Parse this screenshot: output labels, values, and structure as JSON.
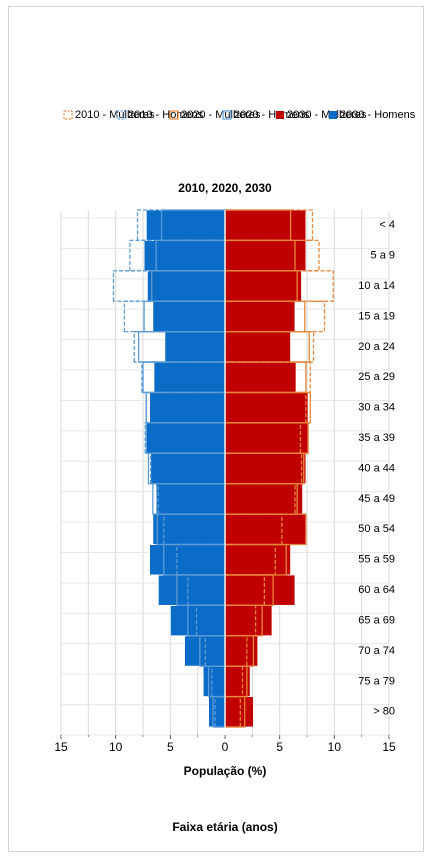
{
  "chart_data": {
    "type": "bar",
    "orientation": "population-pyramid",
    "title": "2010, 2020, 2030",
    "xlabel": "População (%)",
    "ylabel": "Faixa etária (anos)",
    "xlim": [
      -15,
      15
    ],
    "xticks": [
      15,
      10,
      5,
      0,
      5,
      10,
      15
    ],
    "grid": true,
    "legend_position": "top",
    "categories": [
      "> 80",
      "75 a 79",
      "70 a 74",
      "65 a 69",
      "60 a 64",
      "55 a 59",
      "50 a 54",
      "45 a 49",
      "40 a 44",
      "35 a 39",
      "30 a 34",
      "25 a 29",
      "20 a 24",
      "15 a 19",
      "10 a 14",
      "5 a 9",
      "< 4"
    ],
    "series": [
      {
        "name": "2010 - Mulheres",
        "side": "left",
        "style": "dashed-outline",
        "color": "#e8873a",
        "values": [
          1.4,
          1.6,
          2.0,
          2.8,
          3.6,
          4.6,
          5.2,
          6.4,
          7.0,
          6.9,
          7.4,
          7.8,
          8.1,
          9.1,
          9.9,
          8.6,
          8.0
        ]
      },
      {
        "name": "2010 - Homens",
        "side": "right",
        "style": "dashed-outline",
        "color": "#5b9bd5",
        "values": [
          0.9,
          1.2,
          1.8,
          2.6,
          3.4,
          4.4,
          5.6,
          6.1,
          6.8,
          7.3,
          7.2,
          7.6,
          8.3,
          9.2,
          10.2,
          8.7,
          8.0
        ]
      },
      {
        "name": "2020 - Mulheres",
        "side": "left",
        "style": "solid-outline",
        "color": "#e8873a",
        "values": [
          1.8,
          2.0,
          2.6,
          3.4,
          4.4,
          5.6,
          7.4,
          6.6,
          7.2,
          7.6,
          7.8,
          7.4,
          7.7,
          7.3,
          6.6,
          6.4,
          6.0
        ]
      },
      {
        "name": "2020 - Homens",
        "side": "right",
        "style": "solid-outline",
        "color": "#5b9bd5",
        "values": [
          1.1,
          1.5,
          2.3,
          3.4,
          4.4,
          5.6,
          6.2,
          6.6,
          7.0,
          7.2,
          7.2,
          7.5,
          7.9,
          7.4,
          6.7,
          6.3,
          5.8
        ]
      },
      {
        "name": "2030 - Mulheres",
        "side": "left",
        "style": "filled",
        "color": "#c00000",
        "values": [
          2.6,
          2.3,
          3.0,
          4.3,
          6.4,
          6.0,
          7.4,
          7.1,
          7.4,
          7.6,
          7.6,
          6.5,
          6.0,
          6.4,
          7.0,
          7.4,
          7.4
        ]
      },
      {
        "name": "2030 - Homens",
        "side": "right",
        "style": "filled",
        "color": "#0b6cc8",
        "values": [
          1.5,
          2.0,
          3.7,
          5.0,
          6.1,
          6.9,
          6.6,
          6.3,
          6.8,
          7.2,
          6.9,
          6.5,
          5.5,
          6.6,
          7.1,
          7.4,
          7.2
        ]
      }
    ]
  }
}
